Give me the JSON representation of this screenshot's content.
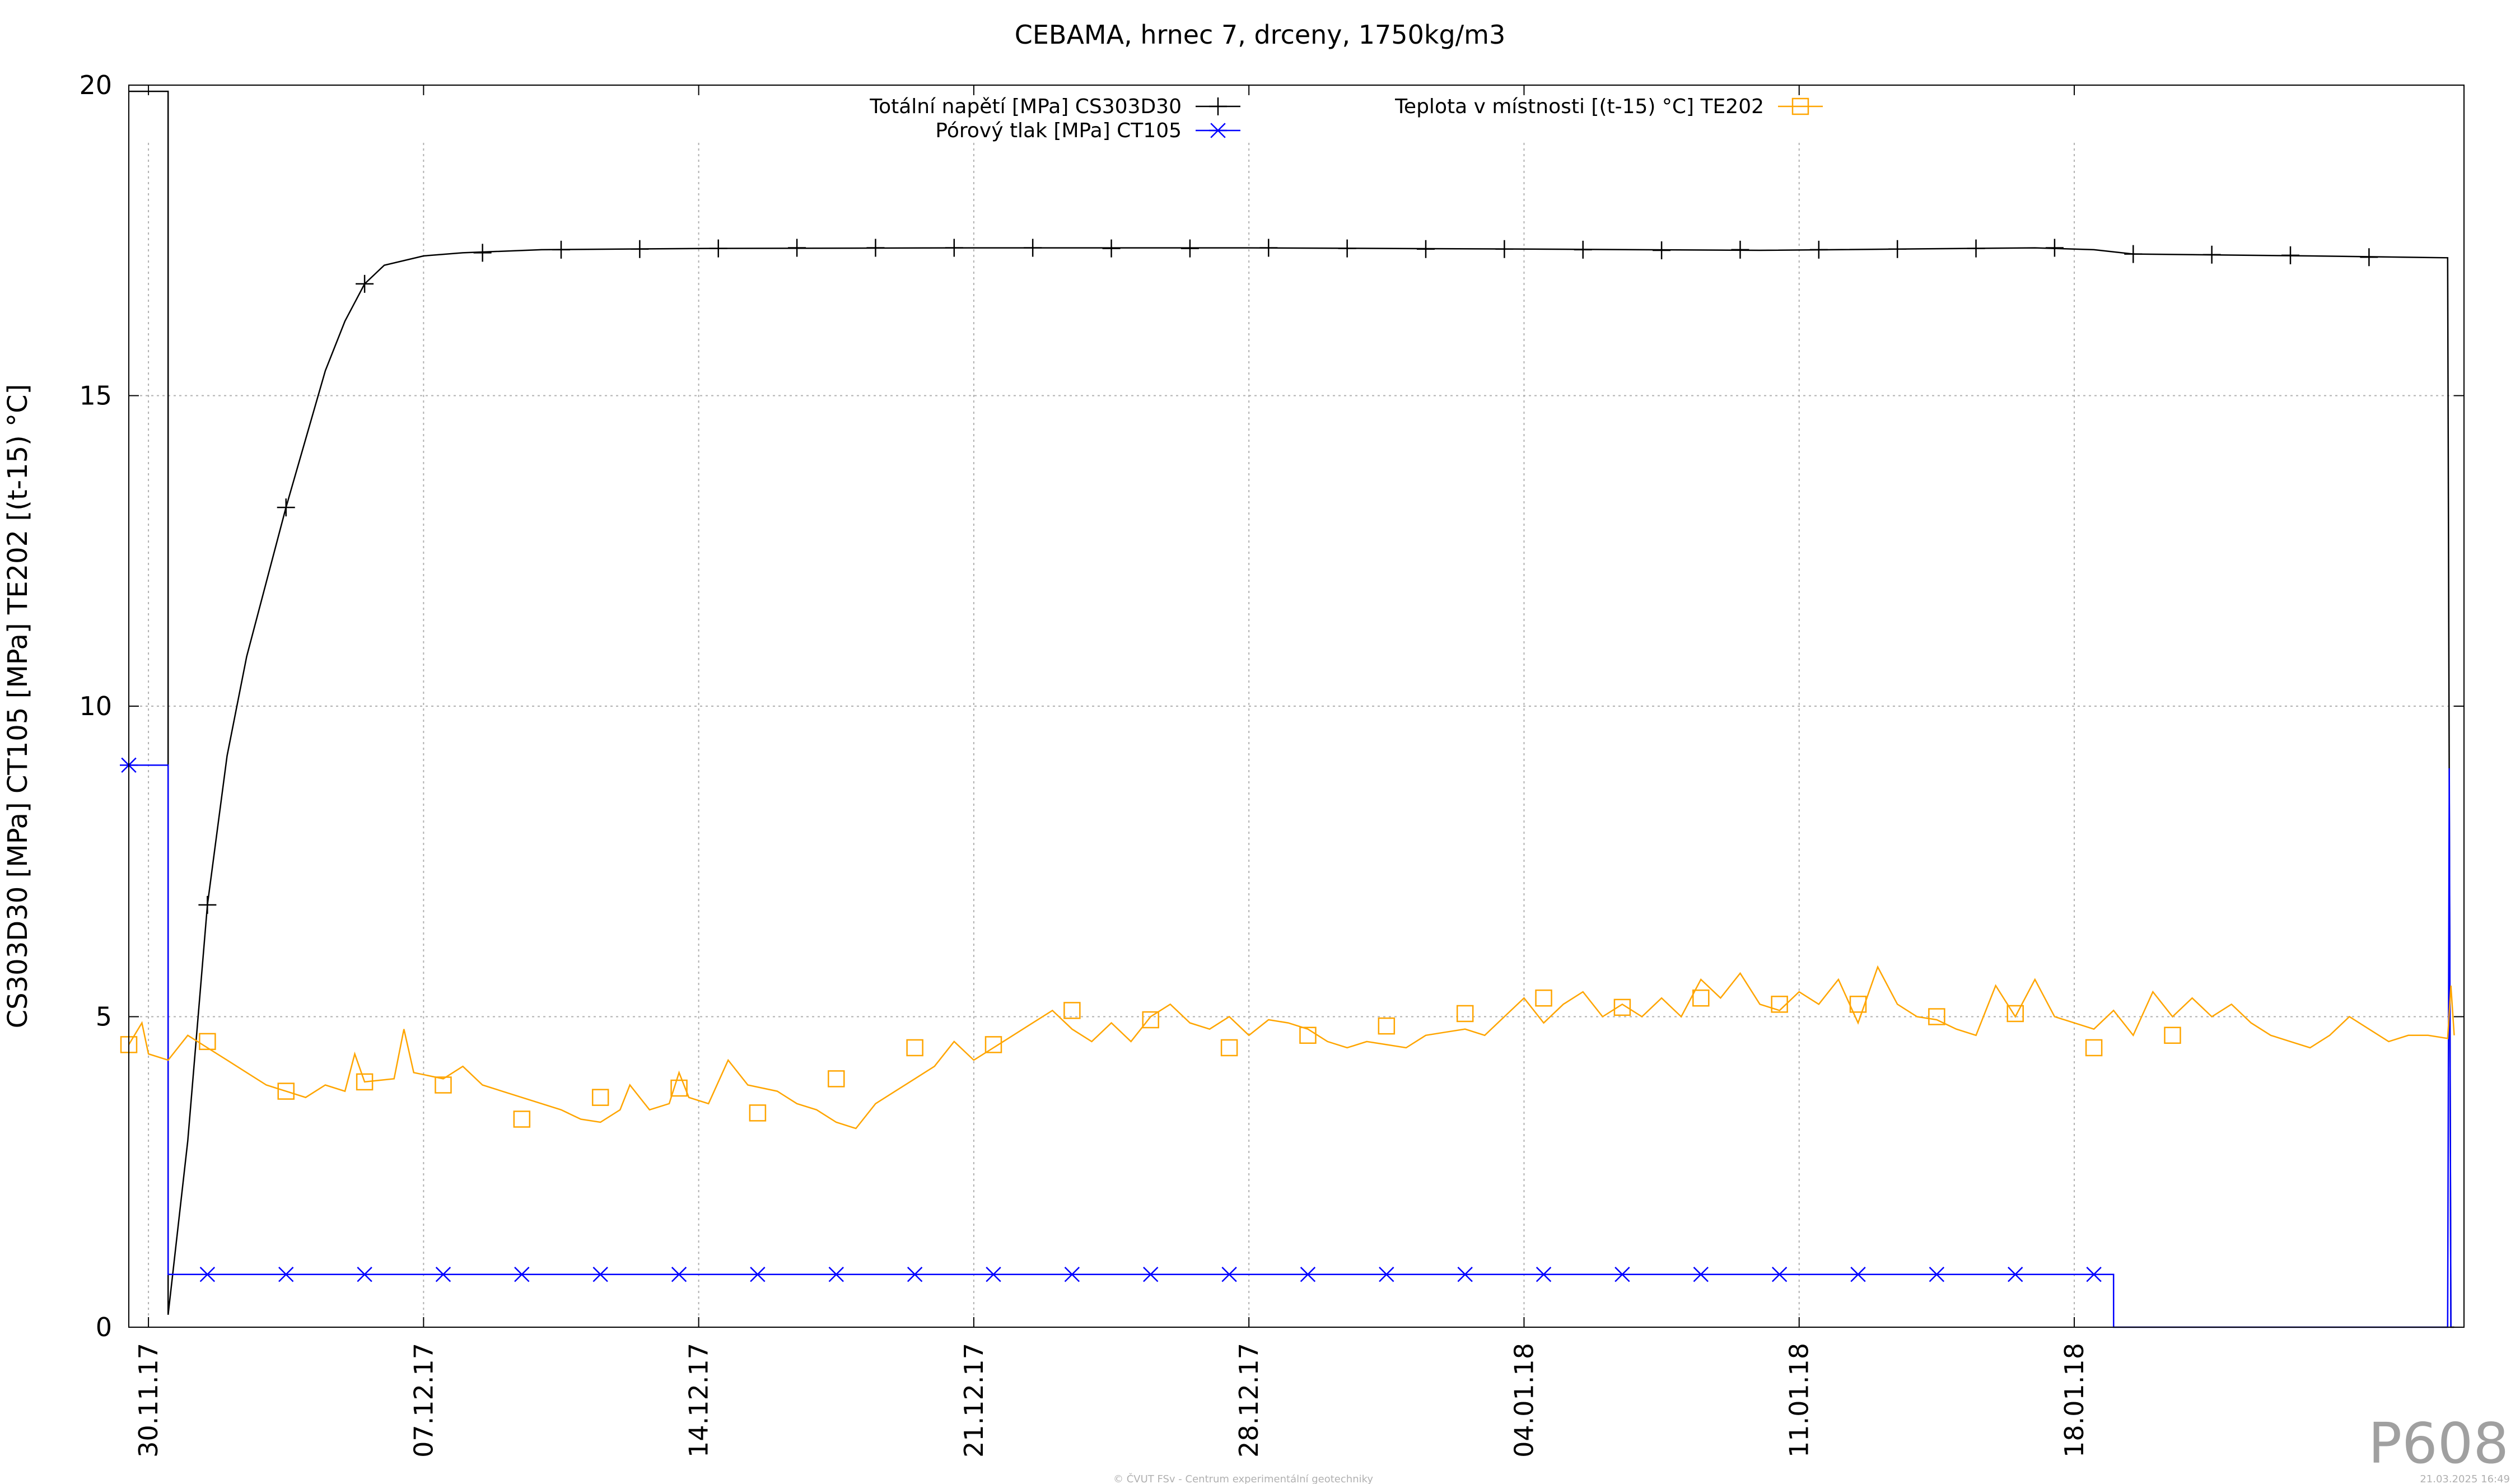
{
  "chart_data": {
    "type": "line",
    "title": "CEBAMA, hrnec 7, drceny, 1750kg/m3",
    "ylabel": "CS303D30 [MPa] CT105 [MPa] TE202 [(t-15) °C]",
    "xlabel": "",
    "ylim": [
      0,
      20
    ],
    "yticks": [
      0,
      5,
      10,
      15,
      20
    ],
    "xlim": [
      "2017-11-29T12:00",
      "2018-01-27T22:00"
    ],
    "xticks": [
      {
        "date": "2017-11-30",
        "label": "30.11.17"
      },
      {
        "date": "2017-12-07",
        "label": "07.12.17"
      },
      {
        "date": "2017-12-14",
        "label": "14.12.17"
      },
      {
        "date": "2017-12-21",
        "label": "21.12.17"
      },
      {
        "date": "2017-12-28",
        "label": "28.12.17"
      },
      {
        "date": "2018-01-04",
        "label": "04.01.18"
      },
      {
        "date": "2018-01-11",
        "label": "11.01.18"
      },
      {
        "date": "2018-01-18",
        "label": "18.01.18"
      }
    ],
    "grid": true,
    "legend_position": "top",
    "series": [
      {
        "name": "Totální napětí [MPa] CS303D30",
        "color": "#000000",
        "marker": "plus",
        "points": [
          [
            "2017-11-29T12:00",
            19.9
          ],
          [
            "2017-11-30T12:00",
            19.9
          ],
          [
            "2017-11-30T12:01",
            0.2
          ],
          [
            "2017-12-01T00:00",
            3.0
          ],
          [
            "2017-12-01T12:00",
            6.8
          ],
          [
            "2017-12-02T00:00",
            9.2
          ],
          [
            "2017-12-02T12:00",
            10.8
          ],
          [
            "2017-12-03T00:00",
            12.0
          ],
          [
            "2017-12-03T12:00",
            13.2
          ],
          [
            "2017-12-04T00:00",
            14.3
          ],
          [
            "2017-12-04T12:00",
            15.4
          ],
          [
            "2017-12-05T00:00",
            16.2
          ],
          [
            "2017-12-05T12:00",
            16.8
          ],
          [
            "2017-12-06T00:00",
            17.1
          ],
          [
            "2017-12-07T00:00",
            17.25
          ],
          [
            "2017-12-08T00:00",
            17.3
          ],
          [
            "2017-12-10T00:00",
            17.35
          ],
          [
            "2017-12-14T00:00",
            17.37
          ],
          [
            "2017-12-21T00:00",
            17.38
          ],
          [
            "2017-12-28T00:00",
            17.38
          ],
          [
            "2018-01-04T00:00",
            17.36
          ],
          [
            "2018-01-10T00:00",
            17.34
          ],
          [
            "2018-01-17T00:00",
            17.38
          ],
          [
            "2018-01-18T12:00",
            17.35
          ],
          [
            "2018-01-19T12:00",
            17.28
          ],
          [
            "2018-01-24T00:00",
            17.25
          ],
          [
            "2018-01-27T12:00",
            17.22
          ],
          [
            "2018-01-27T14:00",
            0.0
          ],
          [
            "2018-01-27T16:00",
            0.0
          ]
        ],
        "marker_points": [
          [
            "2017-12-01T12:00",
            6.8
          ],
          [
            "2017-12-03T12:00",
            13.2
          ],
          [
            "2017-12-05T12:00",
            16.8
          ],
          [
            "2017-12-08T12:00",
            17.3
          ],
          [
            "2017-12-10T12:00",
            17.35
          ],
          [
            "2017-12-12T12:00",
            17.36
          ],
          [
            "2017-12-14T12:00",
            17.37
          ],
          [
            "2017-12-16T12:00",
            17.38
          ],
          [
            "2017-12-18T12:00",
            17.38
          ],
          [
            "2017-12-20T12:00",
            17.38
          ],
          [
            "2017-12-22T12:00",
            17.38
          ],
          [
            "2017-12-24T12:00",
            17.37
          ],
          [
            "2017-12-26T12:00",
            17.37
          ],
          [
            "2017-12-28T12:00",
            17.38
          ],
          [
            "2017-12-30T12:00",
            17.37
          ],
          [
            "2018-01-01T12:00",
            17.36
          ],
          [
            "2018-01-03T12:00",
            17.36
          ],
          [
            "2018-01-05T12:00",
            17.35
          ],
          [
            "2018-01-07T12:00",
            17.34
          ],
          [
            "2018-01-09T12:00",
            17.35
          ],
          [
            "2018-01-11T12:00",
            17.35
          ],
          [
            "2018-01-13T12:00",
            17.36
          ],
          [
            "2018-01-15T12:00",
            17.37
          ],
          [
            "2018-01-17T12:00",
            17.38
          ],
          [
            "2018-01-19T12:00",
            17.28
          ],
          [
            "2018-01-21T12:00",
            17.27
          ],
          [
            "2018-01-23T12:00",
            17.26
          ],
          [
            "2018-01-25T12:00",
            17.23
          ]
        ]
      },
      {
        "name": "Pórový tlak [MPa] CT105",
        "color": "#0000ff",
        "marker": "asterisk",
        "points": [
          [
            "2017-11-29T12:00",
            9.05
          ],
          [
            "2017-11-30T12:00",
            9.05
          ],
          [
            "2017-11-30T12:01",
            0.85
          ],
          [
            "2018-01-19T00:00",
            0.85
          ],
          [
            "2018-01-19T00:01",
            0.0
          ],
          [
            "2018-01-27T12:00",
            0.0
          ],
          [
            "2018-01-27T13:00",
            9.0
          ],
          [
            "2018-01-27T14:00",
            0.0
          ]
        ],
        "marker_points": [
          [
            "2017-11-29T12:00",
            9.05
          ],
          [
            "2017-12-01T12:00",
            0.85
          ],
          [
            "2017-12-03T12:00",
            0.85
          ],
          [
            "2017-12-05T12:00",
            0.85
          ],
          [
            "2017-12-07T12:00",
            0.85
          ],
          [
            "2017-12-09T12:00",
            0.85
          ],
          [
            "2017-12-11T12:00",
            0.85
          ],
          [
            "2017-12-13T12:00",
            0.85
          ],
          [
            "2017-12-15T12:00",
            0.85
          ],
          [
            "2017-12-17T12:00",
            0.85
          ],
          [
            "2017-12-19T12:00",
            0.85
          ],
          [
            "2017-12-21T12:00",
            0.85
          ],
          [
            "2017-12-23T12:00",
            0.85
          ],
          [
            "2017-12-25T12:00",
            0.85
          ],
          [
            "2017-12-27T12:00",
            0.85
          ],
          [
            "2017-12-29T12:00",
            0.85
          ],
          [
            "2017-12-31T12:00",
            0.85
          ],
          [
            "2018-01-02T12:00",
            0.85
          ],
          [
            "2018-01-04T12:00",
            0.85
          ],
          [
            "2018-01-06T12:00",
            0.85
          ],
          [
            "2018-01-08T12:00",
            0.85
          ],
          [
            "2018-01-10T12:00",
            0.85
          ],
          [
            "2018-01-12T12:00",
            0.85
          ],
          [
            "2018-01-14T12:00",
            0.85
          ],
          [
            "2018-01-16T12:00",
            0.85
          ],
          [
            "2018-01-18T12:00",
            0.85
          ]
        ]
      },
      {
        "name": "Teplota v místnosti [(t-15) °C] TE202",
        "color": "#ffa500",
        "marker": "square",
        "points": [
          [
            "2017-11-29T12:00",
            4.55
          ],
          [
            "2017-11-29T20:00",
            4.9
          ],
          [
            "2017-11-30T00:00",
            4.4
          ],
          [
            "2017-11-30T12:00",
            4.3
          ],
          [
            "2017-12-01T00:00",
            4.7
          ],
          [
            "2017-12-01T12:00",
            4.5
          ],
          [
            "2017-12-02T00:00",
            4.3
          ],
          [
            "2017-12-02T12:00",
            4.1
          ],
          [
            "2017-12-03T00:00",
            3.9
          ],
          [
            "2017-12-03T12:00",
            3.8
          ],
          [
            "2017-12-04T00:00",
            3.7
          ],
          [
            "2017-12-04T12:00",
            3.9
          ],
          [
            "2017-12-05T00:00",
            3.8
          ],
          [
            "2017-12-05T06:00",
            4.4
          ],
          [
            "2017-12-05T12:00",
            3.95
          ],
          [
            "2017-12-06T06:00",
            4.0
          ],
          [
            "2017-12-06T12:00",
            4.8
          ],
          [
            "2017-12-06T18:00",
            4.1
          ],
          [
            "2017-12-07T12:00",
            4.0
          ],
          [
            "2017-12-08T00:00",
            4.2
          ],
          [
            "2017-12-08T12:00",
            3.9
          ],
          [
            "2017-12-09T12:00",
            3.7
          ],
          [
            "2017-12-10T12:00",
            3.5
          ],
          [
            "2017-12-11T00:00",
            3.35
          ],
          [
            "2017-12-11T12:00",
            3.3
          ],
          [
            "2017-12-12T00:00",
            3.5
          ],
          [
            "2017-12-12T06:00",
            3.9
          ],
          [
            "2017-12-12T18:00",
            3.5
          ],
          [
            "2017-12-13T06:00",
            3.6
          ],
          [
            "2017-12-13T12:00",
            4.1
          ],
          [
            "2017-12-13T18:00",
            3.7
          ],
          [
            "2017-12-14T06:00",
            3.6
          ],
          [
            "2017-12-14T18:00",
            4.3
          ],
          [
            "2017-12-15T06:00",
            3.9
          ],
          [
            "2017-12-16T00:00",
            3.8
          ],
          [
            "2017-12-16T12:00",
            3.6
          ],
          [
            "2017-12-17T00:00",
            3.5
          ],
          [
            "2017-12-17T12:00",
            3.3
          ],
          [
            "2017-12-18T00:00",
            3.2
          ],
          [
            "2017-12-18T12:00",
            3.6
          ],
          [
            "2017-12-19T00:00",
            3.8
          ],
          [
            "2017-12-19T12:00",
            4.0
          ],
          [
            "2017-12-20T00:00",
            4.2
          ],
          [
            "2017-12-20T12:00",
            4.6
          ],
          [
            "2017-12-21T00:00",
            4.3
          ],
          [
            "2017-12-21T12:00",
            4.5
          ],
          [
            "2017-12-22T00:00",
            4.7
          ],
          [
            "2017-12-22T12:00",
            4.9
          ],
          [
            "2017-12-23T00:00",
            5.1
          ],
          [
            "2017-12-23T12:00",
            4.8
          ],
          [
            "2017-12-24T00:00",
            4.6
          ],
          [
            "2017-12-24T12:00",
            4.9
          ],
          [
            "2017-12-25T00:00",
            4.6
          ],
          [
            "2017-12-25T12:00",
            5.0
          ],
          [
            "2017-12-26T00:00",
            5.2
          ],
          [
            "2017-12-26T12:00",
            4.9
          ],
          [
            "2017-12-27T00:00",
            4.8
          ],
          [
            "2017-12-27T12:00",
            5.0
          ],
          [
            "2017-12-28T00:00",
            4.7
          ],
          [
            "2017-12-28T12:00",
            4.95
          ],
          [
            "2017-12-29T00:00",
            4.9
          ],
          [
            "2017-12-29T12:00",
            4.8
          ],
          [
            "2017-12-30T00:00",
            4.6
          ],
          [
            "2017-12-30T12:00",
            4.5
          ],
          [
            "2017-12-31T00:00",
            4.6
          ],
          [
            "2017-12-31T12:00",
            4.55
          ],
          [
            "2018-01-01T00:00",
            4.5
          ],
          [
            "2018-01-01T12:00",
            4.7
          ],
          [
            "2018-01-02T00:00",
            4.75
          ],
          [
            "2018-01-02T12:00",
            4.8
          ],
          [
            "2018-01-03T00:00",
            4.7
          ],
          [
            "2018-01-03T12:00",
            5.0
          ],
          [
            "2018-01-04T00:00",
            5.3
          ],
          [
            "2018-01-04T12:00",
            4.9
          ],
          [
            "2018-01-05T00:00",
            5.2
          ],
          [
            "2018-01-05T12:00",
            5.4
          ],
          [
            "2018-01-06T00:00",
            5.0
          ],
          [
            "2018-01-06T12:00",
            5.2
          ],
          [
            "2018-01-07T00:00",
            5.0
          ],
          [
            "2018-01-07T12:00",
            5.3
          ],
          [
            "2018-01-08T00:00",
            5.0
          ],
          [
            "2018-01-08T12:00",
            5.6
          ],
          [
            "2018-01-09T00:00",
            5.3
          ],
          [
            "2018-01-09T12:00",
            5.7
          ],
          [
            "2018-01-10T00:00",
            5.2
          ],
          [
            "2018-01-10T12:00",
            5.1
          ],
          [
            "2018-01-11T00:00",
            5.4
          ],
          [
            "2018-01-11T12:00",
            5.2
          ],
          [
            "2018-01-12T00:00",
            5.6
          ],
          [
            "2018-01-12T12:00",
            4.9
          ],
          [
            "2018-01-13T00:00",
            5.8
          ],
          [
            "2018-01-13T12:00",
            5.2
          ],
          [
            "2018-01-14T00:00",
            5.0
          ],
          [
            "2018-01-14T12:00",
            4.95
          ],
          [
            "2018-01-15T00:00",
            4.8
          ],
          [
            "2018-01-15T12:00",
            4.7
          ],
          [
            "2018-01-16T00:00",
            5.5
          ],
          [
            "2018-01-16T12:00",
            5.0
          ],
          [
            "2018-01-17T00:00",
            5.6
          ],
          [
            "2018-01-17T12:00",
            5.0
          ],
          [
            "2018-01-18T00:00",
            4.9
          ],
          [
            "2018-01-18T12:00",
            4.8
          ],
          [
            "2018-01-19T00:00",
            5.1
          ],
          [
            "2018-01-19T12:00",
            4.7
          ],
          [
            "2018-01-20T00:00",
            5.4
          ],
          [
            "2018-01-20T12:00",
            5.0
          ],
          [
            "2018-01-21T00:00",
            5.3
          ],
          [
            "2018-01-21T12:00",
            5.0
          ],
          [
            "2018-01-22T00:00",
            5.2
          ],
          [
            "2018-01-22T12:00",
            4.9
          ],
          [
            "2018-01-23T00:00",
            4.7
          ],
          [
            "2018-01-23T12:00",
            4.6
          ],
          [
            "2018-01-24T00:00",
            4.5
          ],
          [
            "2018-01-24T12:00",
            4.7
          ],
          [
            "2018-01-25T00:00",
            5.0
          ],
          [
            "2018-01-25T12:00",
            4.8
          ],
          [
            "2018-01-26T00:00",
            4.6
          ],
          [
            "2018-01-26T12:00",
            4.7
          ],
          [
            "2018-01-27T00:00",
            4.7
          ],
          [
            "2018-01-27T12:00",
            4.65
          ],
          [
            "2018-01-27T14:00",
            5.5
          ],
          [
            "2018-01-27T16:00",
            4.7
          ]
        ],
        "marker_points": [
          [
            "2017-11-29T12:00",
            4.55
          ],
          [
            "2017-12-01T12:00",
            4.6
          ],
          [
            "2017-12-03T12:00",
            3.8
          ],
          [
            "2017-12-05T12:00",
            3.95
          ],
          [
            "2017-12-07T12:00",
            3.9
          ],
          [
            "2017-12-09T12:00",
            3.35
          ],
          [
            "2017-12-11T12:00",
            3.7
          ],
          [
            "2017-12-13T12:00",
            3.85
          ],
          [
            "2017-12-15T12:00",
            3.45
          ],
          [
            "2017-12-17T12:00",
            4.0
          ],
          [
            "2017-12-19T12:00",
            4.5
          ],
          [
            "2017-12-21T12:00",
            4.55
          ],
          [
            "2017-12-23T12:00",
            5.1
          ],
          [
            "2017-12-25T12:00",
            4.95
          ],
          [
            "2017-12-27T12:00",
            4.5
          ],
          [
            "2017-12-29T12:00",
            4.7
          ],
          [
            "2017-12-31T12:00",
            4.85
          ],
          [
            "2018-01-02T12:00",
            5.05
          ],
          [
            "2018-01-04T12:00",
            5.3
          ],
          [
            "2018-01-06T12:00",
            5.15
          ],
          [
            "2018-01-08T12:00",
            5.3
          ],
          [
            "2018-01-10T12:00",
            5.2
          ],
          [
            "2018-01-12T12:00",
            5.2
          ],
          [
            "2018-01-14T12:00",
            5.0
          ],
          [
            "2018-01-16T12:00",
            5.05
          ],
          [
            "2018-01-18T12:00",
            4.5
          ],
          [
            "2018-01-20T12:00",
            4.7
          ]
        ]
      }
    ]
  },
  "watermark": "P608",
  "footer_center": "© ČVUT FSv - Centrum experimentální geotechniky",
  "footer_right": "21.03.2025 16:49"
}
